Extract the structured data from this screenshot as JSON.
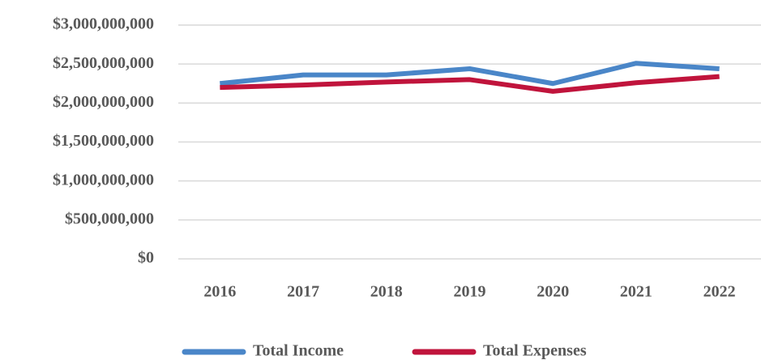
{
  "chart_data": {
    "type": "line",
    "categories": [
      "2016",
      "2017",
      "2018",
      "2019",
      "2020",
      "2021",
      "2022"
    ],
    "series": [
      {
        "name": "Total Income",
        "color": "#4a86c8",
        "values": [
          2250000000,
          2360000000,
          2360000000,
          2440000000,
          2250000000,
          2510000000,
          2440000000
        ]
      },
      {
        "name": "Total Expenses",
        "color": "#c0143c",
        "values": [
          2200000000,
          2230000000,
          2270000000,
          2300000000,
          2150000000,
          2260000000,
          2340000000
        ]
      }
    ],
    "ylim": [
      0,
      3000000000
    ],
    "yticks": [
      {
        "value": 0,
        "label": "$0"
      },
      {
        "value": 500000000,
        "label": "$500,000,000"
      },
      {
        "value": 1000000000,
        "label": "$1,000,000,000"
      },
      {
        "value": 1500000000,
        "label": "$1,500,000,000"
      },
      {
        "value": 2000000000,
        "label": "$2,000,000,000"
      },
      {
        "value": 2500000000,
        "label": "$2,500,000,000"
      },
      {
        "value": 3000000000,
        "label": "$3,000,000,000"
      }
    ],
    "grid": true,
    "legend": "bottom"
  }
}
